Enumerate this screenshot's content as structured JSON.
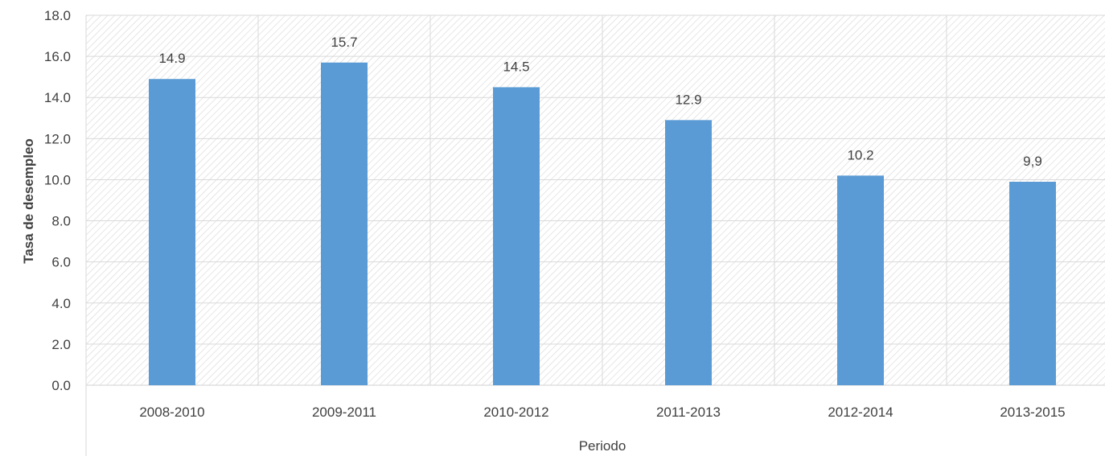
{
  "chart_data": {
    "type": "bar",
    "categories": [
      "2008-2010",
      "2009-2011",
      "2010-2012",
      "2011-2013",
      "2012-2014",
      "2013-2015"
    ],
    "values": [
      14.9,
      15.7,
      14.5,
      12.9,
      10.2,
      9.9
    ],
    "data_labels": [
      "14.9",
      "15.7",
      "14.5",
      "12.9",
      "10.2",
      "9,9"
    ],
    "y_ticks": [
      "0.0",
      "2.0",
      "4.0",
      "6.0",
      "8.0",
      "10.0",
      "12.0",
      "14.0",
      "16.0",
      "18.0"
    ],
    "xlabel": "Periodo",
    "ylabel": "Tasa de desempleo",
    "ylim": [
      0,
      18
    ],
    "grid": true,
    "bar_color": "#5b9bd5",
    "background_pattern": "diagonal-hatch"
  }
}
